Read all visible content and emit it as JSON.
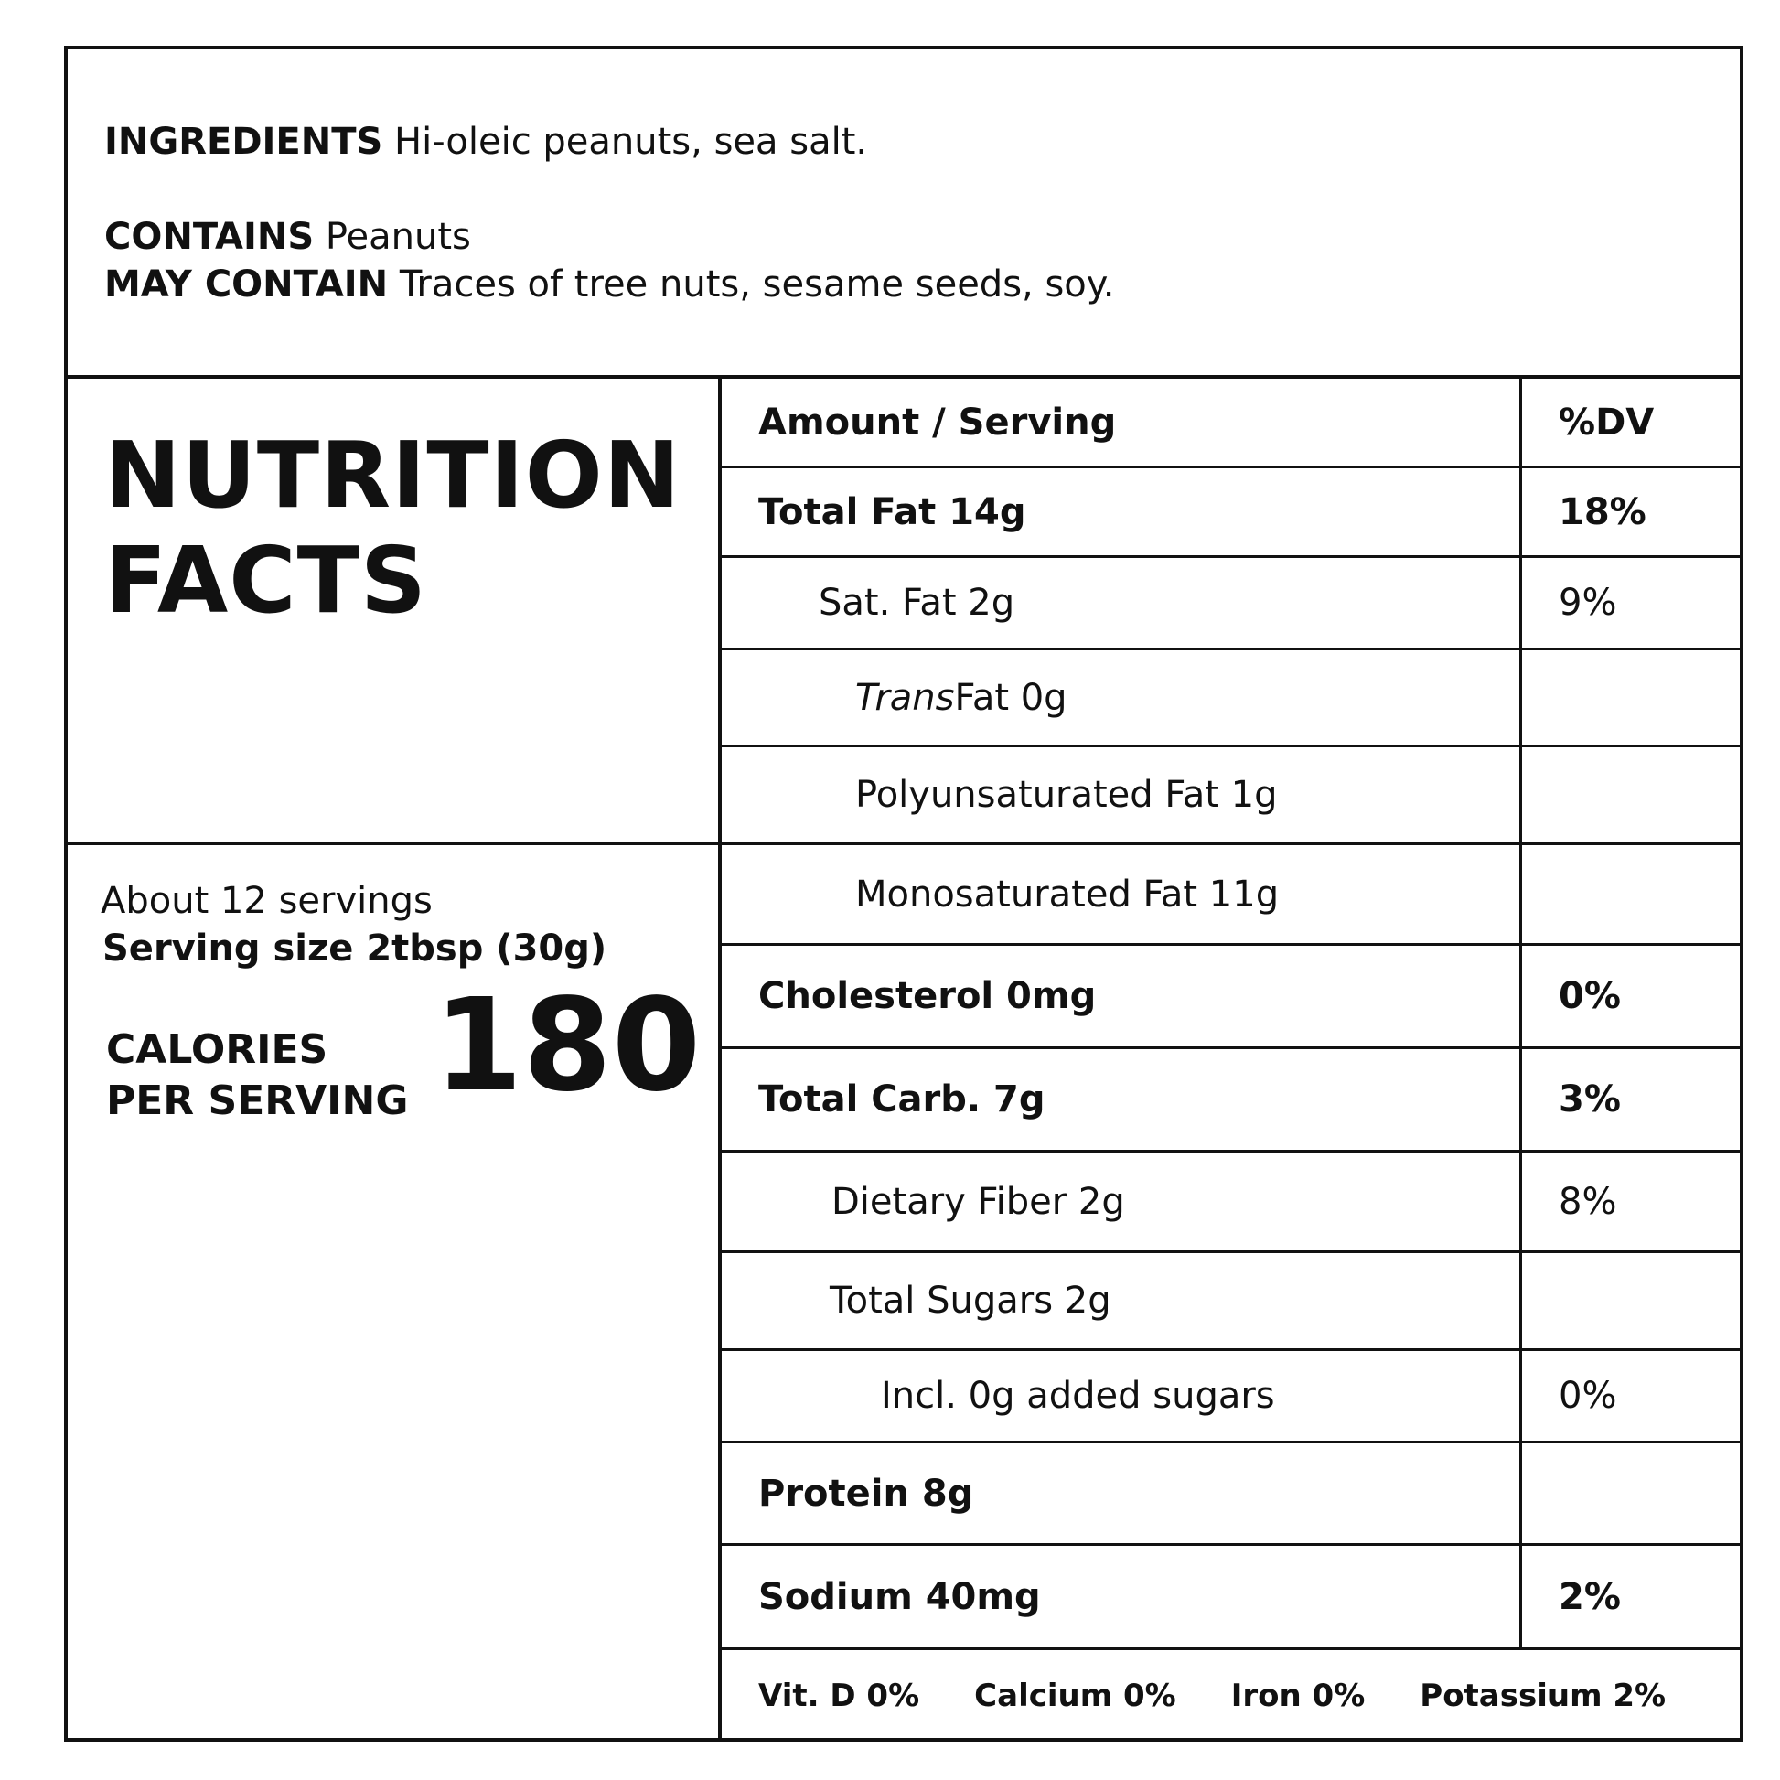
{
  "ingredients": {
    "label": "INGREDIENTS",
    "text": " Hi-oleic peanuts, sea salt."
  },
  "contains": {
    "label": "CONTAINS",
    "text": " Peanuts"
  },
  "may_contain": {
    "label": "MAY CONTAIN",
    "text": " Traces of tree nuts, sesame seeds, soy."
  },
  "title": {
    "line1": "NUTRITION",
    "line2": "FACTS"
  },
  "servings": {
    "count": "About 12 servings",
    "size": "Serving size 2tbsp (30g)"
  },
  "calories": {
    "label1": "CALORIES",
    "label2": "PER SERVING",
    "value": "180"
  },
  "table": {
    "header": {
      "name": "Amount / Serving",
      "dv": "%DV"
    },
    "rows": [
      {
        "name": "Total Fat 14g",
        "dv": "18%"
      },
      {
        "name": "Sat. Fat 2g",
        "dv": "9%"
      },
      {
        "name_italic": "Trans",
        "name": " Fat 0g",
        "dv": ""
      },
      {
        "name": "Polyunsaturated Fat 1g",
        "dv": ""
      },
      {
        "name": "Monosaturated Fat 11g",
        "dv": ""
      },
      {
        "name": "Cholesterol 0mg",
        "dv": "0%"
      },
      {
        "name": "Total Carb. 7g",
        "dv": "3%"
      },
      {
        "name": "Dietary Fiber 2g",
        "dv": "8%"
      },
      {
        "name": "Total Sugars 2g",
        "dv": ""
      },
      {
        "name": "Incl. 0g added sugars",
        "dv": "0%"
      },
      {
        "name": "Protein 8g",
        "dv": ""
      },
      {
        "name": "Sodium 40mg",
        "dv": "2%"
      }
    ],
    "vitamins": [
      "Vit. D 0%",
      "Calcium 0%",
      "Iron 0%",
      "Potassium 2%"
    ]
  }
}
